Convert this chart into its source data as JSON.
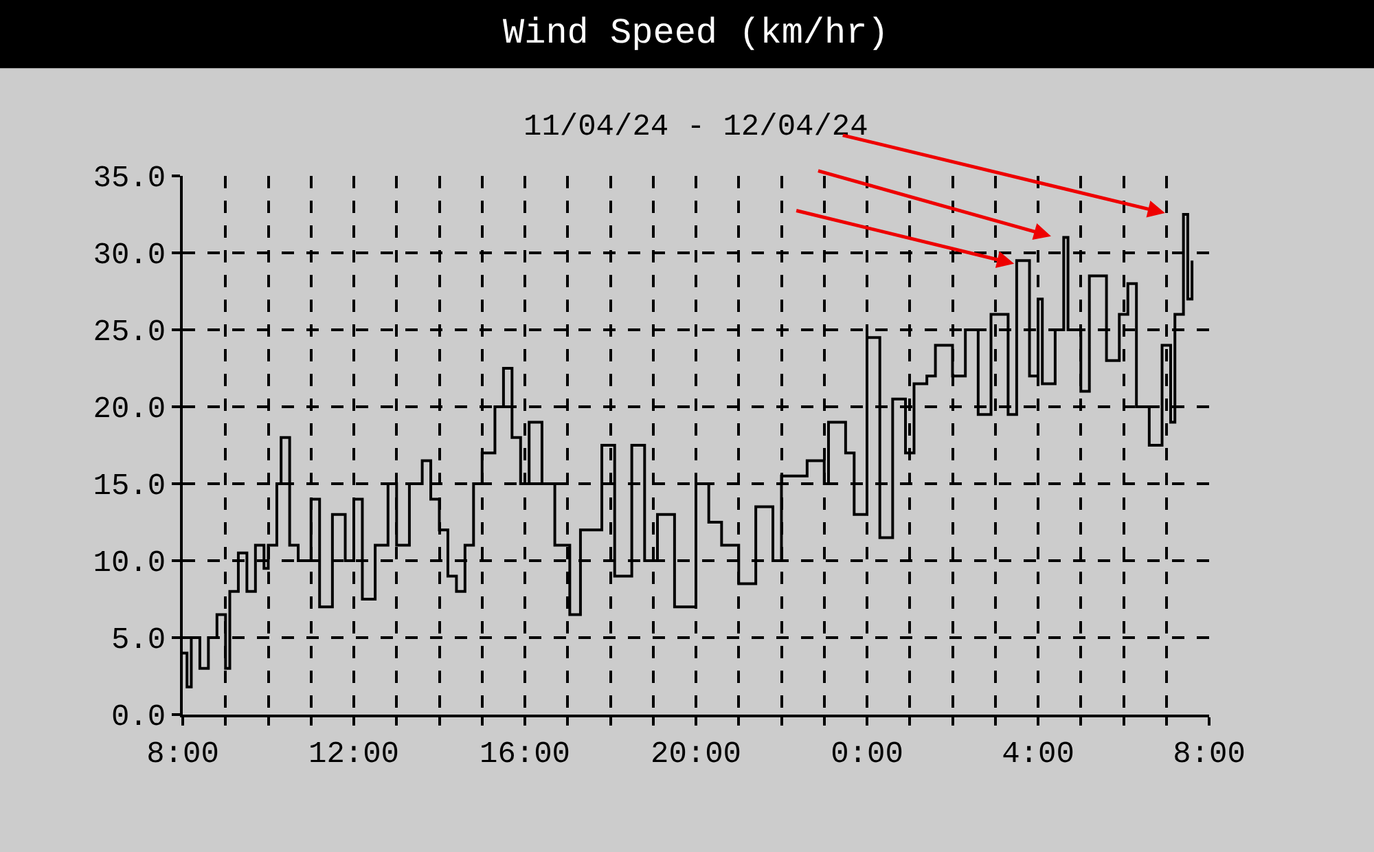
{
  "chart_data": {
    "type": "step",
    "title": "Wind Speed (km/hr)",
    "subtitle": "11/04/24 - 12/04/24",
    "x": [
      "--04-11T08:00",
      "--04-11T08:06",
      "--04-11T08:12",
      "--04-11T08:24",
      "--04-11T08:36",
      "--04-11T08:48",
      "--04-11T09:00",
      "--04-11T09:06",
      "--04-11T09:18",
      "--04-11T09:30",
      "--04-11T09:42",
      "--04-11T09:54",
      "--04-11T10:00",
      "--04-11T10:12",
      "--04-11T10:18",
      "--04-11T10:30",
      "--04-11T10:42",
      "--04-11T11:00",
      "--04-11T11:12",
      "--04-11T11:30",
      "--04-11T11:48",
      "--04-11T12:00",
      "--04-11T12:12",
      "--04-11T12:30",
      "--04-11T12:48",
      "--04-11T13:00",
      "--04-11T13:18",
      "--04-11T13:36",
      "--04-11T13:48",
      "--04-11T14:00",
      "--04-11T14:12",
      "--04-11T14:24",
      "--04-11T14:36",
      "--04-11T14:48",
      "--04-11T15:00",
      "--04-11T15:18",
      "--04-11T15:30",
      "--04-11T15:42",
      "--04-11T15:54",
      "--04-11T16:06",
      "--04-11T16:24",
      "--04-11T16:42",
      "--04-11T17:03",
      "--04-11T17:18",
      "--04-11T17:48",
      "--04-11T18:06",
      "--04-11T18:30",
      "--04-11T18:48",
      "--04-11T19:06",
      "--04-11T19:30",
      "--04-11T20:00",
      "--04-11T20:18",
      "--04-11T20:36",
      "--04-11T21:00",
      "--04-11T21:24",
      "--04-11T21:48",
      "--04-11T22:00",
      "--04-11T22:36",
      "--04-11T23:00",
      "--04-11T23:06",
      "--04-11T23:30",
      "--04-11T23:42",
      "--04-12T00:00",
      "--04-12T00:18",
      "--04-12T00:36",
      "--04-12T00:54",
      "--04-12T01:06",
      "--04-12T01:24",
      "--04-12T01:36",
      "--04-12T02:00",
      "--04-12T02:18",
      "--04-12T02:36",
      "--04-12T02:54",
      "--04-12T03:18",
      "--04-12T03:30",
      "--04-12T03:48",
      "--04-12T04:00",
      "--04-12T04:06",
      "--04-12T04:24",
      "--04-12T04:36",
      "--04-12T04:42",
      "--04-12T05:00",
      "--04-12T05:12",
      "--04-12T05:36",
      "--04-12T05:54",
      "--04-12T06:06",
      "--04-12T06:18",
      "--04-12T06:36",
      "--04-12T06:54",
      "--04-12T07:06",
      "--04-12T07:12",
      "--04-12T07:24",
      "--04-12T07:30",
      "--04-12T07:36"
    ],
    "series": [
      {
        "color": "#000000",
        "values": [
          4,
          1.8,
          5,
          3,
          5,
          6.5,
          3,
          8,
          10.5,
          8,
          11,
          9.5,
          11,
          15,
          18,
          11,
          10,
          14,
          7,
          13,
          10,
          14,
          7.5,
          11,
          15,
          11,
          15,
          16.5,
          14,
          12,
          9,
          8,
          11,
          15,
          17,
          20,
          22.5,
          18,
          15,
          19,
          15,
          11,
          6.5,
          12,
          17.5,
          9,
          17.5,
          10,
          13,
          7,
          15,
          12.5,
          11,
          8.5,
          13.5,
          10,
          15.5,
          16.5,
          15,
          19,
          17,
          13,
          24.5,
          11.5,
          20.5,
          17,
          21.5,
          22,
          24,
          22,
          25,
          19.5,
          26,
          19.5,
          29.5,
          22,
          27,
          21.5,
          25,
          31,
          25,
          21,
          28.5,
          23,
          26,
          28,
          20,
          17.5,
          24,
          19,
          26,
          32.5,
          27,
          29.5
        ]
      }
    ],
    "xlim": [
      "--04-11T08:00",
      "--04-12T08:00"
    ],
    "xticks": [
      {
        "value": "--04-11T08:00",
        "label": "8:00"
      },
      {
        "value": "--04-11T09:00",
        "label": null
      },
      {
        "value": "--04-11T10:00",
        "label": null
      },
      {
        "value": "--04-11T11:00",
        "label": null
      },
      {
        "value": "--04-11T12:00",
        "label": "12:00"
      },
      {
        "value": "--04-11T13:00",
        "label": null
      },
      {
        "value": "--04-11T14:00",
        "label": null
      },
      {
        "value": "--04-11T15:00",
        "label": null
      },
      {
        "value": "--04-11T16:00",
        "label": "16:00"
      },
      {
        "value": "--04-11T17:00",
        "label": null
      },
      {
        "value": "--04-11T18:00",
        "label": null
      },
      {
        "value": "--04-11T19:00",
        "label": null
      },
      {
        "value": "--04-11T20:00",
        "label": "20:00"
      },
      {
        "value": "--04-11T21:00",
        "label": null
      },
      {
        "value": "--04-11T22:00",
        "label": null
      },
      {
        "value": "--04-11T23:00",
        "label": null
      },
      {
        "value": "--04-12T00:00",
        "label": "0:00"
      },
      {
        "value": "--04-12T01:00",
        "label": null
      },
      {
        "value": "--04-12T02:00",
        "label": null
      },
      {
        "value": "--04-12T03:00",
        "label": null
      },
      {
        "value": "--04-12T04:00",
        "label": "4:00"
      },
      {
        "value": "--04-12T05:00",
        "label": null
      },
      {
        "value": "--04-12T06:00",
        "label": null
      },
      {
        "value": "--04-12T07:00",
        "label": null
      },
      {
        "value": "--04-12T08:00",
        "label": "8:00"
      }
    ],
    "ylim": [
      0,
      35
    ],
    "yticks": [
      {
        "value": 0,
        "label": "0.0"
      },
      {
        "value": 5,
        "label": "5.0"
      },
      {
        "value": 10,
        "label": "10.0"
      },
      {
        "value": 15,
        "label": "15.0"
      },
      {
        "value": 20,
        "label": "20.0"
      },
      {
        "value": 25,
        "label": "25.0"
      },
      {
        "value": 30,
        "label": "30.0"
      },
      {
        "value": 35,
        "label": "35.0"
      }
    ],
    "grid": true,
    "marker": "none",
    "line_style": "solid"
  }
}
